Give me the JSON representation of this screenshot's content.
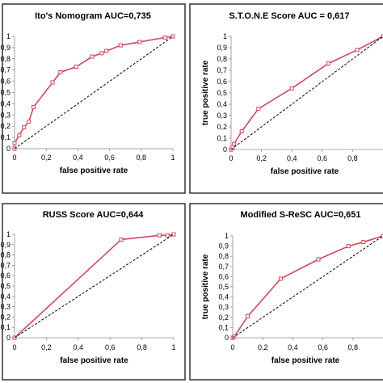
{
  "chart_data": [
    {
      "type": "line",
      "title": "Ito's Nomogram  AUC=0,735",
      "xlabel": "false positive rate",
      "ylabel": "",
      "xlim": [
        0,
        1
      ],
      "ylim": [
        0,
        1
      ],
      "x_ticks": [
        "0",
        "0,2",
        "0,4",
        "0,6",
        "0,8",
        "1"
      ],
      "y_ticks": [
        "0",
        "0,1",
        "0,2",
        "0,3",
        "0,4",
        "0,5",
        "0,6",
        "0,7",
        "0,8",
        "0,9",
        "1"
      ],
      "series": [
        {
          "name": "",
          "color": "#d04a5c",
          "x": [
            0,
            0,
            0.03,
            0.06,
            0.09,
            0.12,
            0.24,
            0.29,
            0.39,
            0.49,
            0.55,
            0.58,
            0.67,
            0.79,
            0.95,
            1
          ],
          "y": [
            0,
            0.05,
            0.12,
            0.19,
            0.24,
            0.37,
            0.59,
            0.68,
            0.73,
            0.82,
            0.85,
            0.87,
            0.92,
            0.95,
            0.99,
            1
          ]
        },
        {
          "name": "",
          "color": "#000000",
          "style": "dashed",
          "x": [
            0,
            1
          ],
          "y": [
            0,
            1
          ]
        }
      ]
    },
    {
      "type": "line",
      "title": "S.T.O.N.E Score AUC = 0,617",
      "xlabel": "false positive rate",
      "ylabel": "true positive rate",
      "xlim": [
        0,
        1
      ],
      "ylim": [
        0,
        1
      ],
      "x_ticks": [
        "0",
        "0,2",
        "0,4",
        "0,6",
        "0,8"
      ],
      "y_ticks": [
        "0",
        "0,1",
        "0,2",
        "0,3",
        "0,4",
        "0,5",
        "0,6",
        "0,7",
        "0,8",
        "0,9",
        "1"
      ],
      "series": [
        {
          "name": "",
          "color": "#d04a5c",
          "x": [
            0,
            0.01,
            0.02,
            0.07,
            0.18,
            0.4,
            0.64,
            0.83,
            1
          ],
          "y": [
            0,
            0.02,
            0.05,
            0.16,
            0.36,
            0.54,
            0.76,
            0.88,
            1
          ]
        },
        {
          "name": "",
          "color": "#000000",
          "style": "dashed",
          "x": [
            0,
            1
          ],
          "y": [
            0,
            1
          ]
        }
      ]
    },
    {
      "type": "line",
      "title": "RUSS Score AUC=0,644",
      "xlabel": "false positive rate",
      "ylabel": "",
      "xlim": [
        0,
        1
      ],
      "ylim": [
        0,
        1
      ],
      "x_ticks": [
        "0",
        "0,2",
        "0,4",
        "0,6",
        "0,8",
        "1"
      ],
      "y_ticks": [
        "0",
        "0,1",
        "0,2",
        "0,3",
        "0,4",
        "0,5",
        "0,6",
        "0,7",
        "0,8",
        "0,9",
        "1"
      ],
      "series": [
        {
          "name": "",
          "color": "#d04a5c",
          "x": [
            0,
            0.67,
            0.91,
            0.96,
            1
          ],
          "y": [
            0,
            0.95,
            0.99,
            0.99,
            1
          ]
        },
        {
          "name": "",
          "color": "#000000",
          "style": "dashed",
          "x": [
            0,
            1
          ],
          "y": [
            0,
            1
          ]
        }
      ]
    },
    {
      "type": "line",
      "title": "Modified S-ReSC AUC=0,651",
      "xlabel": "false positive rate",
      "ylabel": "true positive rate",
      "xlim": [
        0,
        1
      ],
      "ylim": [
        0,
        1
      ],
      "x_ticks": [
        "0",
        "0,2",
        "0,4",
        "0,6",
        "0,8"
      ],
      "y_ticks": [
        "0",
        "0,1",
        "0,2",
        "0,3",
        "0,4",
        "0,5",
        "0,6",
        "0,7",
        "0,8",
        "0,9",
        "1"
      ],
      "series": [
        {
          "name": "",
          "color": "#d04a5c",
          "x": [
            0,
            0.01,
            0.1,
            0.32,
            0.57,
            0.77,
            0.87,
            1
          ],
          "y": [
            0,
            0.01,
            0.21,
            0.58,
            0.77,
            0.9,
            0.94,
            1
          ]
        },
        {
          "name": "",
          "color": "#000000",
          "style": "dashed",
          "x": [
            0,
            1
          ],
          "y": [
            0,
            1
          ]
        }
      ]
    }
  ]
}
